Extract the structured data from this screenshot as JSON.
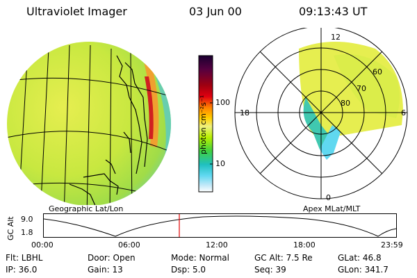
{
  "header": {
    "instrument": "Ultraviolet Imager",
    "date": "03 Jun 00",
    "time": "09:13:43 UT"
  },
  "left_panel": {
    "caption": "Geographic Lat/Lon"
  },
  "right_panel": {
    "caption": "Apex MLat/MLT",
    "mlt_labels": {
      "top": "12",
      "left": "18",
      "right": "6",
      "bottom": "0"
    },
    "mlat_labels": [
      "60",
      "70",
      "80"
    ]
  },
  "colorbar": {
    "unit_label": "photon cm⁻²s⁻¹",
    "ticks": [
      "100",
      "10"
    ],
    "colors": [
      "#1a0030",
      "#550040",
      "#a00010",
      "#e00010",
      "#ff8000",
      "#ffd000",
      "#f0f080",
      "#b8f000",
      "#40d040",
      "#20c0c0",
      "#60d8f0",
      "#c0e8f8",
      "#ffffff"
    ]
  },
  "altitude_plot": {
    "y_label": "GC Alt",
    "y_ticks": [
      "9.0",
      "1.8"
    ],
    "x_ticks": [
      "00:00",
      "06:00",
      "12:00",
      "18:00",
      "23:59"
    ],
    "marker_time_hours": 9.23
  },
  "info": {
    "row1": {
      "flt": "Flt: LBHL",
      "door": "Door: Open",
      "mode": "Mode: Normal",
      "gc_alt": "GC Alt: 7.5 Re",
      "glat": "GLat:  46.8"
    },
    "row2": {
      "ip": "IP: 36.0",
      "gain": "Gain: 13",
      "dsp": "Dsp:    5.0",
      "seq": "Seq: 39",
      "glon": "GLon: 341.7"
    }
  }
}
